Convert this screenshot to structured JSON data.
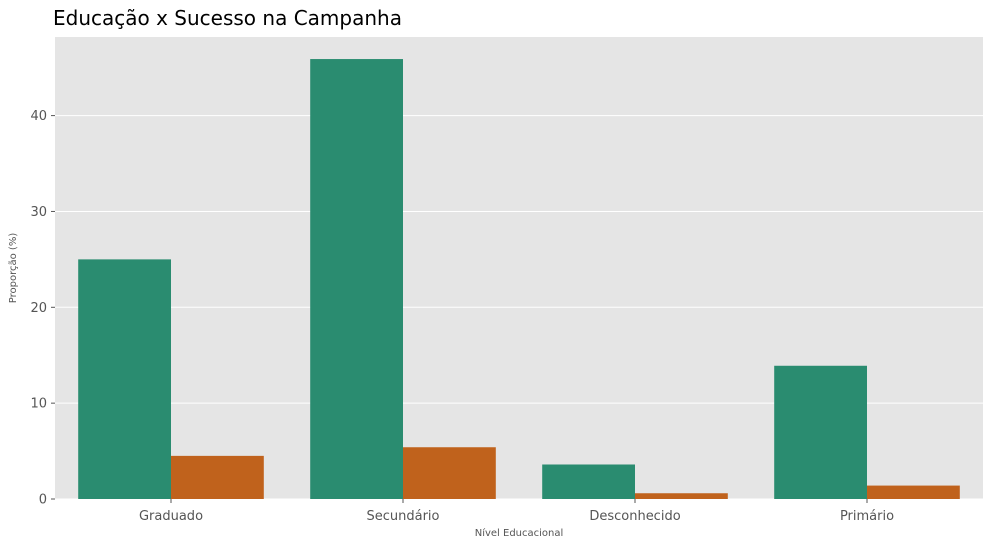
{
  "chart_data": {
    "type": "bar",
    "title": "Educação x Sucesso na Campanha",
    "xlabel": "Nível Educacional",
    "ylabel": "Proporção (%)",
    "categories": [
      "Graduado",
      "Secundário",
      "Desconhecido",
      "Primário"
    ],
    "series": [
      {
        "values": [
          25.0,
          45.9,
          3.6,
          13.9
        ],
        "color": "#2a8c70"
      },
      {
        "values": [
          4.5,
          5.4,
          0.6,
          1.4
        ],
        "color": "#c0621c"
      }
    ],
    "ylim": [
      0,
      48.2
    ],
    "yticks": [
      0,
      10,
      20,
      30,
      40
    ],
    "grid": true,
    "legend": "none",
    "background": "#e5e5e5",
    "grid_color": "#ffffff"
  }
}
